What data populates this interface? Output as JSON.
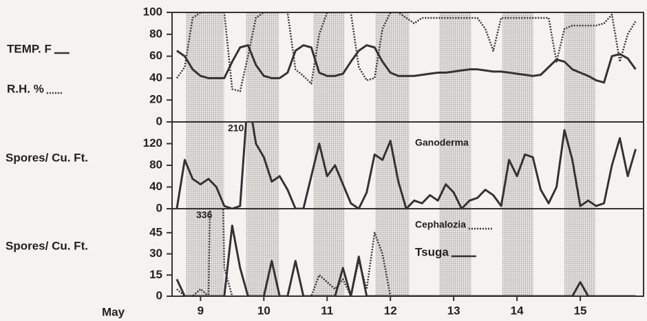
{
  "chart_data": [
    {
      "type": "line",
      "xlim": [
        8.55,
        16.0
      ],
      "ylim": [
        0,
        100
      ],
      "yticks": [
        0,
        20,
        40,
        60,
        80,
        100
      ],
      "shaded_ranges": [
        [
          8.77,
          9.37
        ],
        [
          9.72,
          10.24
        ],
        [
          10.78,
          11.27
        ],
        [
          11.76,
          12.3
        ],
        [
          12.77,
          13.28
        ],
        [
          13.77,
          14.26
        ],
        [
          14.75,
          15.24
        ]
      ],
      "x": [
        8.625,
        8.75,
        8.875,
        9,
        9.125,
        9.25,
        9.375,
        9.5,
        9.625,
        9.75,
        9.875,
        10,
        10.125,
        10.25,
        10.375,
        10.5,
        10.625,
        10.75,
        10.875,
        11,
        11.125,
        11.25,
        11.375,
        11.5,
        11.625,
        11.75,
        11.875,
        12,
        12.125,
        12.25,
        12.375,
        12.5,
        12.625,
        12.75,
        12.875,
        13,
        13.125,
        13.25,
        13.375,
        13.5,
        13.625,
        13.75,
        13.875,
        14,
        14.125,
        14.25,
        14.375,
        14.5,
        14.625,
        14.75,
        14.875,
        15,
        15.125,
        15.25,
        15.375,
        15.5,
        15.625,
        15.75,
        15.875
      ],
      "series": [
        {
          "name": "TEMP. F",
          "color": "#333333",
          "style": "solid",
          "values": [
            65,
            60,
            48,
            42,
            40,
            40,
            40,
            55,
            68,
            70,
            52,
            42,
            40,
            40,
            45,
            65,
            70,
            68,
            45,
            42,
            42,
            44,
            55,
            65,
            70,
            68,
            55,
            45,
            42,
            42,
            42,
            43,
            44,
            45,
            45,
            46,
            47,
            48,
            48,
            47,
            46,
            46,
            45,
            44,
            43,
            42,
            43,
            50,
            57,
            55,
            48,
            45,
            42,
            38,
            36,
            60,
            62,
            58,
            48
          ]
        },
        {
          "name": "R.H. %",
          "color": "#333333",
          "style": "dotted",
          "values": [
            40,
            50,
            95,
            100,
            100,
            100,
            100,
            30,
            28,
            60,
            95,
            100,
            100,
            100,
            100,
            48,
            42,
            35,
            80,
            100,
            100,
            100,
            100,
            50,
            38,
            40,
            85,
            100,
            100,
            95,
            90,
            95,
            95,
            95,
            95,
            95,
            95,
            95,
            95,
            85,
            65,
            95,
            95,
            95,
            95,
            95,
            95,
            95,
            55,
            85,
            88,
            88,
            88,
            88,
            90,
            98,
            55,
            80,
            92
          ]
        }
      ]
    },
    {
      "type": "line",
      "xlim": [
        8.55,
        16.0
      ],
      "ylim": [
        0,
        160
      ],
      "yticks": [
        0,
        40,
        80,
        120
      ],
      "ylabel": "Spores/ Cu. Ft.",
      "shaded_ranges": [
        [
          8.77,
          9.37
        ],
        [
          9.72,
          10.24
        ],
        [
          10.78,
          11.27
        ],
        [
          11.76,
          12.3
        ],
        [
          12.77,
          13.28
        ],
        [
          13.77,
          14.26
        ],
        [
          14.75,
          15.24
        ]
      ],
      "x": [
        8.625,
        8.75,
        8.875,
        9,
        9.125,
        9.25,
        9.375,
        9.5,
        9.625,
        9.75,
        9.875,
        10,
        10.125,
        10.25,
        10.375,
        10.5,
        10.625,
        10.75,
        10.875,
        11,
        11.125,
        11.25,
        11.375,
        11.5,
        11.625,
        11.75,
        11.875,
        12,
        12.125,
        12.25,
        12.375,
        12.5,
        12.625,
        12.75,
        12.875,
        13,
        13.125,
        13.25,
        13.375,
        13.5,
        13.625,
        13.75,
        13.875,
        14,
        14.125,
        14.25,
        14.375,
        14.5,
        14.625,
        14.75,
        14.875,
        15,
        15.125,
        15.25,
        15.375,
        15.5,
        15.625,
        15.75,
        15.875
      ],
      "series": [
        {
          "name": "Ganoderma",
          "color": "#333333",
          "style": "solid",
          "values": [
            0,
            90,
            55,
            45,
            55,
            40,
            5,
            0,
            5,
            210,
            120,
            95,
            50,
            60,
            35,
            0,
            0,
            60,
            120,
            60,
            80,
            45,
            10,
            0,
            30,
            100,
            90,
            125,
            50,
            0,
            15,
            10,
            25,
            15,
            45,
            30,
            0,
            15,
            20,
            35,
            25,
            5,
            90,
            60,
            100,
            95,
            35,
            10,
            40,
            145,
            90,
            5,
            15,
            5,
            10,
            80,
            130,
            60,
            110
          ],
          "value_labels": [
            null,
            null,
            null,
            null,
            null,
            null,
            null,
            null,
            null,
            "210",
            null,
            null,
            null,
            null,
            null,
            null,
            null,
            null,
            null,
            null,
            null,
            null,
            null,
            null,
            null,
            null,
            null,
            null,
            null,
            null,
            null,
            null,
            null,
            null,
            null,
            null,
            null,
            null,
            null,
            null,
            null,
            null,
            null,
            null,
            null,
            null,
            null,
            null,
            null,
            null,
            null,
            null,
            null,
            null,
            null,
            null,
            null,
            null,
            null
          ]
        }
      ]
    },
    {
      "type": "line",
      "xlim": [
        8.55,
        16.0
      ],
      "ylim": [
        0,
        62
      ],
      "yticks": [
        0,
        15,
        30,
        45
      ],
      "ylabel": "Spores/ Cu. Ft.",
      "xlabel": "May",
      "xticks": [
        9,
        10,
        11,
        12,
        13,
        14,
        15
      ],
      "shaded_ranges": [
        [
          8.77,
          9.37
        ],
        [
          9.72,
          10.24
        ],
        [
          10.78,
          11.27
        ],
        [
          11.76,
          12.3
        ],
        [
          12.77,
          13.28
        ],
        [
          13.77,
          14.26
        ],
        [
          14.75,
          15.24
        ]
      ],
      "x": [
        8.625,
        8.75,
        8.875,
        9,
        9.125,
        9.25,
        9.375,
        9.5,
        9.625,
        9.75,
        9.875,
        10,
        10.125,
        10.25,
        10.375,
        10.5,
        10.625,
        10.75,
        10.875,
        11,
        11.125,
        11.25,
        11.375,
        11.5,
        11.625,
        11.75,
        11.875,
        12,
        12.125,
        12.25,
        12.375,
        12.5,
        12.625,
        12.75,
        12.875,
        13,
        13.125,
        13.25,
        13.375,
        13.5,
        13.625,
        13.75,
        13.875,
        14,
        14.125,
        14.25,
        14.375,
        14.5,
        14.625,
        14.75,
        14.875,
        15,
        15.125,
        15.25,
        15.375,
        15.5,
        15.625,
        15.75,
        15.875
      ],
      "series": [
        {
          "name": "Cephalozia",
          "color": "#333333",
          "style": "dotted",
          "values": [
            5,
            0,
            0,
            5,
            0,
            336,
            20,
            0,
            0,
            0,
            0,
            0,
            0,
            0,
            0,
            0,
            0,
            0,
            15,
            10,
            5,
            12,
            0,
            25,
            5,
            45,
            30,
            0,
            0,
            0,
            0,
            0,
            0,
            0,
            0,
            0,
            0,
            0,
            0,
            0,
            0,
            0,
            0,
            0,
            0,
            0,
            0,
            0,
            0,
            0,
            0,
            0,
            0,
            0,
            0,
            0,
            0,
            0,
            0
          ],
          "value_labels": [
            null,
            null,
            null,
            null,
            null,
            "336",
            null,
            null,
            null,
            null,
            null,
            null,
            null,
            null,
            null,
            null,
            null,
            null,
            null,
            null,
            null,
            null,
            null,
            null,
            null,
            null,
            null,
            null,
            null,
            null,
            null,
            null,
            null,
            null,
            null,
            null,
            null,
            null,
            null,
            null,
            null,
            null,
            null,
            null,
            null,
            null,
            null,
            null,
            null,
            null,
            null,
            null,
            null,
            null,
            null,
            null,
            null,
            null,
            null
          ]
        },
        {
          "name": "Tsuga",
          "color": "#333333",
          "style": "solid",
          "values": [
            12,
            0,
            0,
            0,
            0,
            0,
            0,
            50,
            20,
            0,
            0,
            0,
            25,
            0,
            0,
            25,
            0,
            0,
            0,
            0,
            0,
            20,
            0,
            28,
            0,
            0,
            0,
            0,
            0,
            0,
            0,
            0,
            0,
            0,
            0,
            0,
            0,
            0,
            0,
            0,
            0,
            0,
            0,
            0,
            0,
            0,
            0,
            0,
            0,
            0,
            0,
            10,
            0,
            0,
            0,
            0,
            0,
            0,
            0
          ]
        }
      ]
    }
  ]
}
